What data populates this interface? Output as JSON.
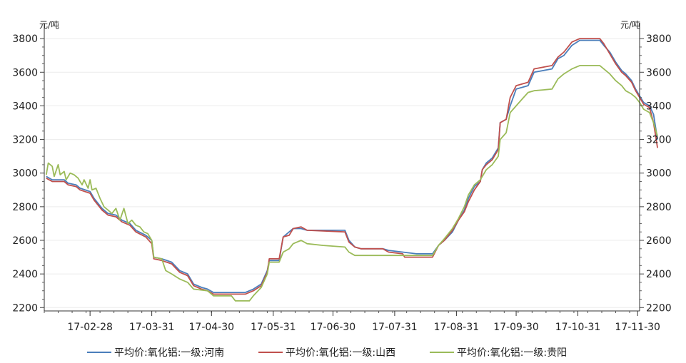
{
  "chart_data": {
    "type": "line",
    "title": "",
    "xlabel": "",
    "ylabel_left": "元/吨",
    "ylabel_right": "元/吨",
    "ylim": [
      2180,
      3860
    ],
    "yticks": [
      2200,
      2400,
      2600,
      2800,
      3000,
      3200,
      3400,
      3600,
      3800
    ],
    "xlim": [
      "2017-02-05",
      "2017-12-01"
    ],
    "xticks": [
      {
        "date": "2017-02-28",
        "label": "17-02-28"
      },
      {
        "date": "2017-03-31",
        "label": "17-03-31"
      },
      {
        "date": "2017-04-30",
        "label": "17-04-30"
      },
      {
        "date": "2017-05-31",
        "label": "17-05-31"
      },
      {
        "date": "2017-06-30",
        "label": "17-06-30"
      },
      {
        "date": "2017-07-31",
        "label": "17-07-31"
      },
      {
        "date": "2017-08-31",
        "label": "17-08-31"
      },
      {
        "date": "2017-09-30",
        "label": "17-09-30"
      },
      {
        "date": "2017-10-31",
        "label": "17-10-31"
      },
      {
        "date": "2017-11-30",
        "label": "17-11-30"
      }
    ],
    "grid": true,
    "legend_position": "bottom",
    "series": [
      {
        "name": "平均价:氧化铝:一级:河南",
        "color": "#4a7ebb",
        "points": [
          [
            "2017-02-06",
            2980
          ],
          [
            "2017-02-09",
            2960
          ],
          [
            "2017-02-15",
            2960
          ],
          [
            "2017-02-17",
            2940
          ],
          [
            "2017-02-21",
            2930
          ],
          [
            "2017-02-23",
            2910
          ],
          [
            "2017-02-28",
            2890
          ],
          [
            "2017-03-02",
            2850
          ],
          [
            "2017-03-06",
            2790
          ],
          [
            "2017-03-09",
            2760
          ],
          [
            "2017-03-13",
            2750
          ],
          [
            "2017-03-16",
            2720
          ],
          [
            "2017-03-20",
            2700
          ],
          [
            "2017-03-23",
            2660
          ],
          [
            "2017-03-28",
            2630
          ],
          [
            "2017-03-31",
            2600
          ],
          [
            "2017-04-01",
            2500
          ],
          [
            "2017-04-05",
            2490
          ],
          [
            "2017-04-10",
            2470
          ],
          [
            "2017-04-14",
            2420
          ],
          [
            "2017-04-18",
            2400
          ],
          [
            "2017-04-21",
            2340
          ],
          [
            "2017-04-25",
            2320
          ],
          [
            "2017-04-28",
            2310
          ],
          [
            "2017-05-01",
            2290
          ],
          [
            "2017-05-10",
            2290
          ],
          [
            "2017-05-17",
            2290
          ],
          [
            "2017-05-21",
            2310
          ],
          [
            "2017-05-25",
            2340
          ],
          [
            "2017-05-28",
            2420
          ],
          [
            "2017-05-29",
            2480
          ],
          [
            "2017-06-03",
            2480
          ],
          [
            "2017-06-05",
            2620
          ],
          [
            "2017-06-08",
            2650
          ],
          [
            "2017-06-10",
            2670
          ],
          [
            "2017-06-14",
            2670
          ],
          [
            "2017-06-17",
            2660
          ],
          [
            "2017-07-06",
            2660
          ],
          [
            "2017-07-08",
            2600
          ],
          [
            "2017-07-11",
            2560
          ],
          [
            "2017-07-14",
            2550
          ],
          [
            "2017-07-25",
            2550
          ],
          [
            "2017-07-28",
            2540
          ],
          [
            "2017-08-04",
            2530
          ],
          [
            "2017-08-11",
            2520
          ],
          [
            "2017-08-19",
            2520
          ],
          [
            "2017-08-22",
            2570
          ],
          [
            "2017-08-25",
            2600
          ],
          [
            "2017-08-29",
            2650
          ],
          [
            "2017-09-01",
            2720
          ],
          [
            "2017-09-04",
            2780
          ],
          [
            "2017-09-06",
            2850
          ],
          [
            "2017-09-09",
            2920
          ],
          [
            "2017-09-12",
            2950
          ],
          [
            "2017-09-13",
            3020
          ],
          [
            "2017-09-15",
            3060
          ],
          [
            "2017-09-18",
            3090
          ],
          [
            "2017-09-21",
            3150
          ],
          [
            "2017-09-22",
            3300
          ],
          [
            "2017-09-25",
            3320
          ],
          [
            "2017-09-27",
            3400
          ],
          [
            "2017-09-30",
            3500
          ],
          [
            "2017-10-06",
            3520
          ],
          [
            "2017-10-09",
            3600
          ],
          [
            "2017-10-18",
            3620
          ],
          [
            "2017-10-21",
            3680
          ],
          [
            "2017-10-24",
            3700
          ],
          [
            "2017-10-28",
            3760
          ],
          [
            "2017-11-01",
            3790
          ],
          [
            "2017-11-11",
            3790
          ],
          [
            "2017-11-13",
            3760
          ],
          [
            "2017-11-16",
            3720
          ],
          [
            "2017-11-19",
            3660
          ],
          [
            "2017-11-22",
            3610
          ],
          [
            "2017-11-24",
            3590
          ],
          [
            "2017-11-27",
            3550
          ],
          [
            "2017-11-29",
            3500
          ],
          [
            "2017-12-01",
            3460
          ],
          [
            "2017-12-03",
            3420
          ],
          [
            "2017-12-06",
            3400
          ],
          [
            "2017-12-08",
            3350
          ],
          [
            "2017-12-10",
            3200
          ]
        ]
      },
      {
        "name": "平均价:氧化铝:一级:山西",
        "color": "#c0504d",
        "points": [
          [
            "2017-02-06",
            2970
          ],
          [
            "2017-02-09",
            2950
          ],
          [
            "2017-02-15",
            2950
          ],
          [
            "2017-02-17",
            2930
          ],
          [
            "2017-02-21",
            2920
          ],
          [
            "2017-02-23",
            2900
          ],
          [
            "2017-02-28",
            2880
          ],
          [
            "2017-03-02",
            2840
          ],
          [
            "2017-03-06",
            2780
          ],
          [
            "2017-03-09",
            2750
          ],
          [
            "2017-03-13",
            2740
          ],
          [
            "2017-03-16",
            2710
          ],
          [
            "2017-03-20",
            2690
          ],
          [
            "2017-03-23",
            2650
          ],
          [
            "2017-03-28",
            2620
          ],
          [
            "2017-03-31",
            2580
          ],
          [
            "2017-04-01",
            2490
          ],
          [
            "2017-04-05",
            2480
          ],
          [
            "2017-04-10",
            2460
          ],
          [
            "2017-04-14",
            2410
          ],
          [
            "2017-04-18",
            2390
          ],
          [
            "2017-04-21",
            2330
          ],
          [
            "2017-04-25",
            2310
          ],
          [
            "2017-04-28",
            2300
          ],
          [
            "2017-05-01",
            2280
          ],
          [
            "2017-05-10",
            2280
          ],
          [
            "2017-05-17",
            2280
          ],
          [
            "2017-05-21",
            2300
          ],
          [
            "2017-05-25",
            2330
          ],
          [
            "2017-05-28",
            2410
          ],
          [
            "2017-05-29",
            2490
          ],
          [
            "2017-06-03",
            2490
          ],
          [
            "2017-06-05",
            2620
          ],
          [
            "2017-06-08",
            2630
          ],
          [
            "2017-06-10",
            2670
          ],
          [
            "2017-06-14",
            2680
          ],
          [
            "2017-06-17",
            2660
          ],
          [
            "2017-07-06",
            2650
          ],
          [
            "2017-07-08",
            2590
          ],
          [
            "2017-07-11",
            2560
          ],
          [
            "2017-07-14",
            2550
          ],
          [
            "2017-07-25",
            2550
          ],
          [
            "2017-07-28",
            2530
          ],
          [
            "2017-08-04",
            2520
          ],
          [
            "2017-08-05",
            2500
          ],
          [
            "2017-08-19",
            2500
          ],
          [
            "2017-08-22",
            2570
          ],
          [
            "2017-08-25",
            2600
          ],
          [
            "2017-08-29",
            2660
          ],
          [
            "2017-09-01",
            2720
          ],
          [
            "2017-09-04",
            2770
          ],
          [
            "2017-09-06",
            2830
          ],
          [
            "2017-09-09",
            2900
          ],
          [
            "2017-09-12",
            2950
          ],
          [
            "2017-09-13",
            3020
          ],
          [
            "2017-09-15",
            3050
          ],
          [
            "2017-09-18",
            3080
          ],
          [
            "2017-09-21",
            3140
          ],
          [
            "2017-09-22",
            3300
          ],
          [
            "2017-09-25",
            3320
          ],
          [
            "2017-09-27",
            3450
          ],
          [
            "2017-09-30",
            3520
          ],
          [
            "2017-10-06",
            3540
          ],
          [
            "2017-10-09",
            3620
          ],
          [
            "2017-10-18",
            3640
          ],
          [
            "2017-10-21",
            3690
          ],
          [
            "2017-10-24",
            3720
          ],
          [
            "2017-10-28",
            3780
          ],
          [
            "2017-11-01",
            3800
          ],
          [
            "2017-11-11",
            3800
          ],
          [
            "2017-11-13",
            3770
          ],
          [
            "2017-11-16",
            3710
          ],
          [
            "2017-11-19",
            3650
          ],
          [
            "2017-11-22",
            3600
          ],
          [
            "2017-11-24",
            3580
          ],
          [
            "2017-11-27",
            3540
          ],
          [
            "2017-11-29",
            3490
          ],
          [
            "2017-12-01",
            3450
          ],
          [
            "2017-12-03",
            3410
          ],
          [
            "2017-12-06",
            3390
          ],
          [
            "2017-12-08",
            3300
          ],
          [
            "2017-12-10",
            3150
          ]
        ]
      },
      {
        "name": "平均价:氧化铝:一级:贵阳",
        "color": "#9bbb59",
        "points": [
          [
            "2017-02-06",
            2990
          ],
          [
            "2017-02-07",
            3060
          ],
          [
            "2017-02-09",
            3040
          ],
          [
            "2017-02-10",
            2980
          ],
          [
            "2017-02-12",
            3050
          ],
          [
            "2017-02-13",
            2990
          ],
          [
            "2017-02-15",
            3010
          ],
          [
            "2017-02-16",
            2960
          ],
          [
            "2017-02-18",
            3000
          ],
          [
            "2017-02-20",
            2990
          ],
          [
            "2017-02-22",
            2970
          ],
          [
            "2017-02-24",
            2930
          ],
          [
            "2017-02-25",
            2960
          ],
          [
            "2017-02-27",
            2910
          ],
          [
            "2017-02-28",
            2960
          ],
          [
            "2017-03-01",
            2900
          ],
          [
            "2017-03-03",
            2910
          ],
          [
            "2017-03-05",
            2850
          ],
          [
            "2017-03-07",
            2800
          ],
          [
            "2017-03-09",
            2780
          ],
          [
            "2017-03-11",
            2760
          ],
          [
            "2017-03-13",
            2790
          ],
          [
            "2017-03-15",
            2720
          ],
          [
            "2017-03-17",
            2790
          ],
          [
            "2017-03-19",
            2700
          ],
          [
            "2017-03-21",
            2720
          ],
          [
            "2017-03-23",
            2690
          ],
          [
            "2017-03-25",
            2680
          ],
          [
            "2017-03-27",
            2650
          ],
          [
            "2017-03-29",
            2640
          ],
          [
            "2017-03-31",
            2600
          ],
          [
            "2017-04-01",
            2500
          ],
          [
            "2017-04-05",
            2490
          ],
          [
            "2017-04-07",
            2420
          ],
          [
            "2017-04-10",
            2400
          ],
          [
            "2017-04-14",
            2370
          ],
          [
            "2017-04-18",
            2350
          ],
          [
            "2017-04-21",
            2310
          ],
          [
            "2017-04-28",
            2300
          ],
          [
            "2017-05-01",
            2270
          ],
          [
            "2017-05-10",
            2270
          ],
          [
            "2017-05-12",
            2240
          ],
          [
            "2017-05-19",
            2240
          ],
          [
            "2017-05-21",
            2270
          ],
          [
            "2017-05-25",
            2320
          ],
          [
            "2017-05-28",
            2400
          ],
          [
            "2017-05-29",
            2470
          ],
          [
            "2017-06-03",
            2470
          ],
          [
            "2017-06-05",
            2530
          ],
          [
            "2017-06-08",
            2550
          ],
          [
            "2017-06-10",
            2580
          ],
          [
            "2017-06-14",
            2600
          ],
          [
            "2017-06-17",
            2580
          ],
          [
            "2017-06-25",
            2570
          ],
          [
            "2017-07-06",
            2560
          ],
          [
            "2017-07-08",
            2530
          ],
          [
            "2017-07-11",
            2510
          ],
          [
            "2017-07-25",
            2510
          ],
          [
            "2017-08-05",
            2510
          ],
          [
            "2017-08-19",
            2510
          ],
          [
            "2017-08-22",
            2570
          ],
          [
            "2017-08-25",
            2610
          ],
          [
            "2017-08-29",
            2670
          ],
          [
            "2017-09-01",
            2730
          ],
          [
            "2017-09-04",
            2800
          ],
          [
            "2017-09-06",
            2870
          ],
          [
            "2017-09-09",
            2930
          ],
          [
            "2017-09-12",
            2960
          ],
          [
            "2017-09-15",
            3020
          ],
          [
            "2017-09-18",
            3050
          ],
          [
            "2017-09-21",
            3100
          ],
          [
            "2017-09-22",
            3200
          ],
          [
            "2017-09-25",
            3240
          ],
          [
            "2017-09-27",
            3360
          ],
          [
            "2017-09-30",
            3400
          ],
          [
            "2017-10-03",
            3440
          ],
          [
            "2017-10-06",
            3480
          ],
          [
            "2017-10-09",
            3490
          ],
          [
            "2017-10-18",
            3500
          ],
          [
            "2017-10-21",
            3560
          ],
          [
            "2017-10-24",
            3590
          ],
          [
            "2017-10-28",
            3620
          ],
          [
            "2017-11-01",
            3640
          ],
          [
            "2017-11-11",
            3640
          ],
          [
            "2017-11-13",
            3620
          ],
          [
            "2017-11-16",
            3590
          ],
          [
            "2017-11-19",
            3550
          ],
          [
            "2017-11-22",
            3520
          ],
          [
            "2017-11-24",
            3490
          ],
          [
            "2017-11-27",
            3470
          ],
          [
            "2017-11-29",
            3450
          ],
          [
            "2017-12-01",
            3420
          ],
          [
            "2017-12-03",
            3380
          ],
          [
            "2017-12-06",
            3360
          ],
          [
            "2017-12-08",
            3300
          ],
          [
            "2017-12-10",
            3220
          ]
        ]
      }
    ]
  }
}
